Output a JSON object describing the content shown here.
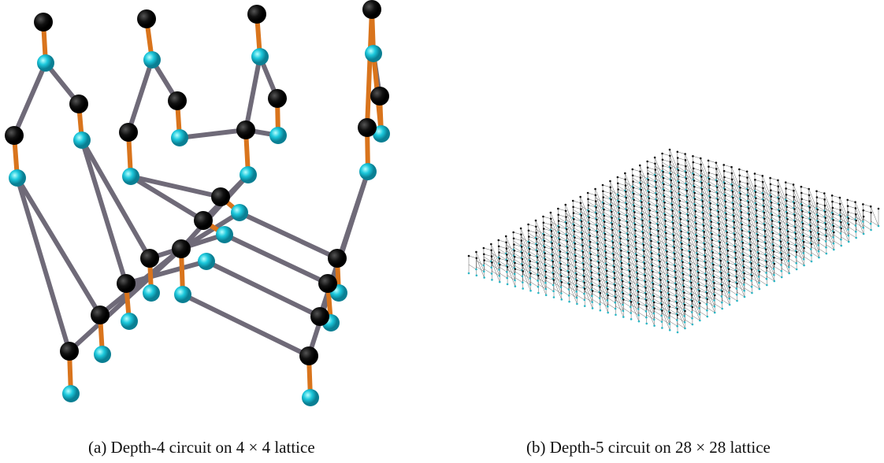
{
  "figure": {
    "panels": [
      {
        "caption": "(a) Depth-4 circuit on 4 × 4 lattice"
      },
      {
        "caption": "(b) Depth-5 circuit on 28 × 28 lattice"
      }
    ]
  }
}
